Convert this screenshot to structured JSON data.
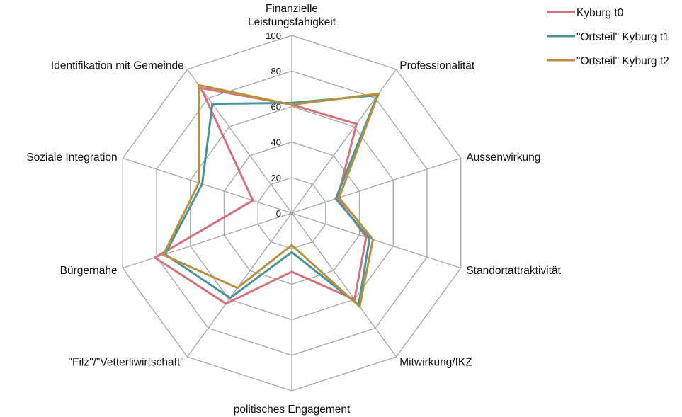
{
  "chart_data": {
    "type": "radar",
    "r_range": [
      0,
      100
    ],
    "ticks": [
      "0",
      "20",
      "40",
      "60",
      "80",
      "100"
    ],
    "tick_values": [
      0,
      20,
      40,
      60,
      80,
      100
    ],
    "axes": [
      [
        "Finanzielle",
        "Leistungsfähigkeit"
      ],
      [
        "Professionalität"
      ],
      [
        "Aussenwirkung"
      ],
      [
        "Standortattraktivität"
      ],
      [
        "Mitwirkung/IKZ"
      ],
      [
        "politisches Engagement"
      ],
      [
        "\"Filz\"/\"Vetterliwirtschaft\""
      ],
      [
        "Bürgernähe"
      ],
      [
        "Soziale Integration"
      ],
      [
        "Identifikation mit Gemeinde"
      ]
    ],
    "grid": true,
    "legend_position": "top-right",
    "series": [
      {
        "name": "Kyburg t0",
        "color": "#d4727a",
        "values": [
          61,
          62,
          27,
          44,
          60,
          33,
          63,
          81,
          23,
          87
        ]
      },
      {
        "name": "\"Ortsteil\" Kyburg t1",
        "color": "#4a9399",
        "values": [
          62,
          82,
          26,
          46,
          64,
          22,
          59,
          75,
          53,
          76
        ]
      },
      {
        "name": "\"Ortsteil\" Kyburg t2",
        "color": "#b8913f",
        "values": [
          61,
          83,
          28,
          48,
          65,
          18,
          52,
          76,
          55,
          89
        ]
      }
    ]
  }
}
